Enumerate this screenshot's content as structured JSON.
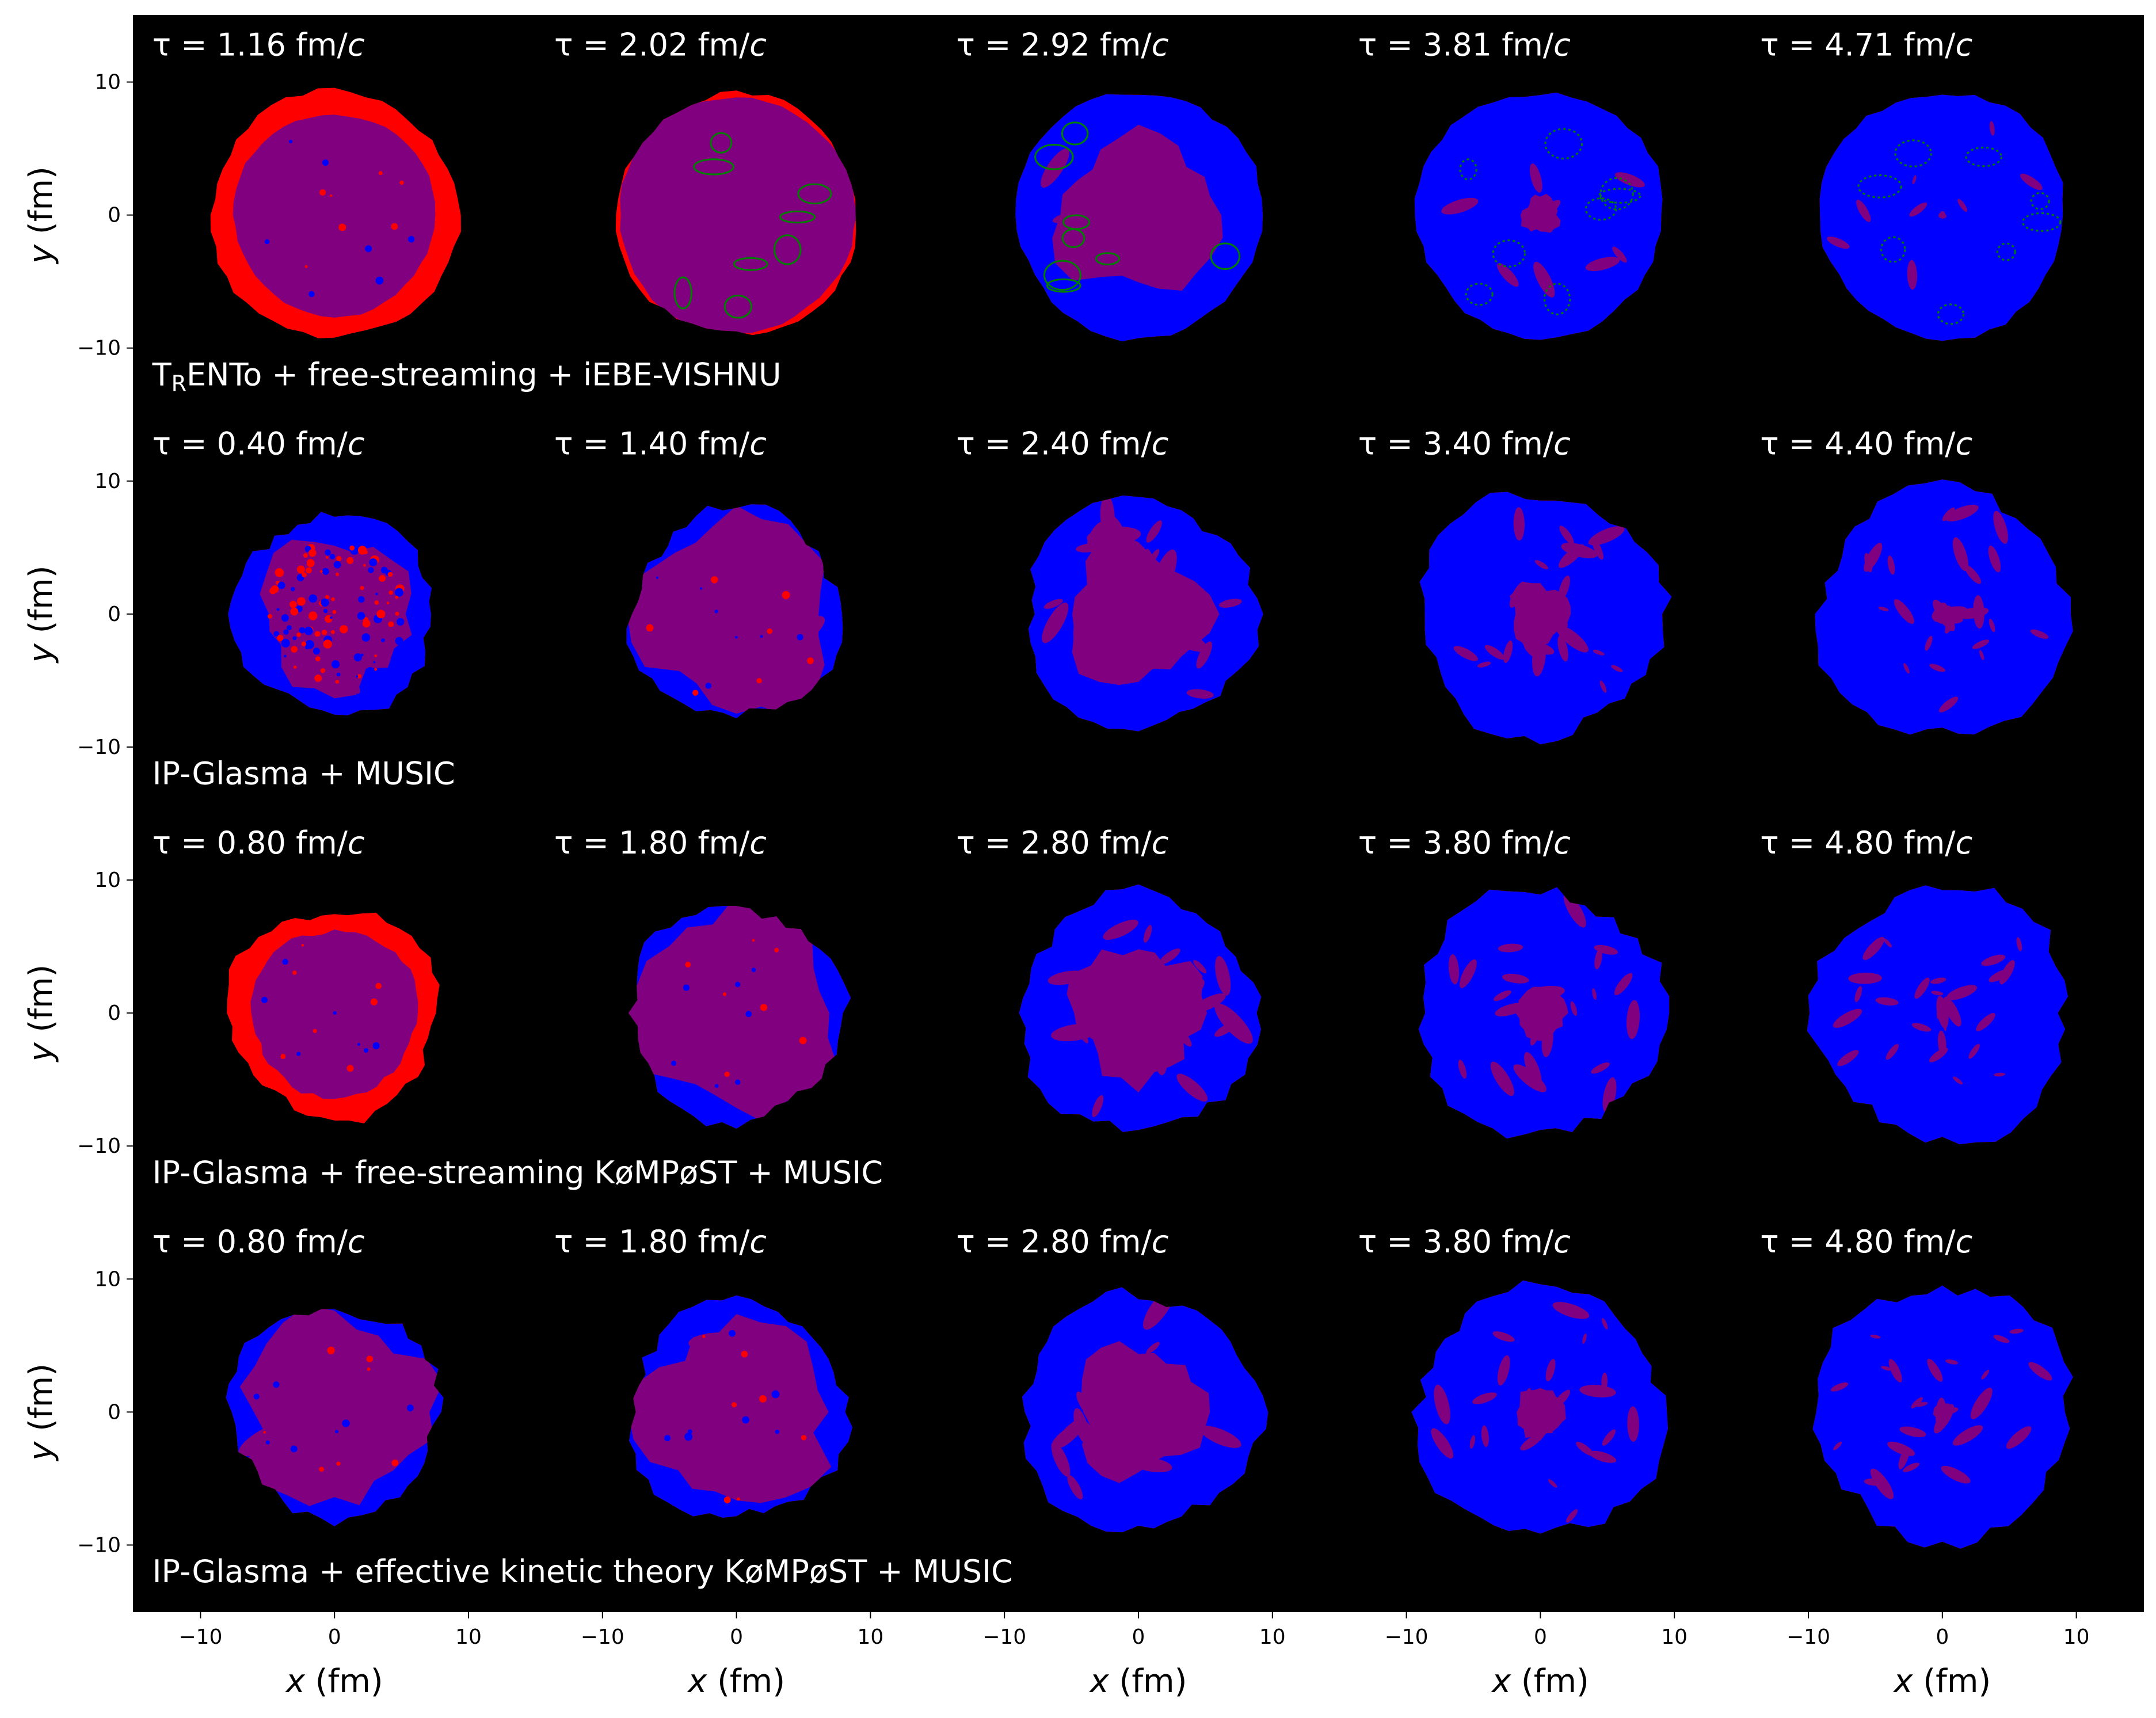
{
  "chart_data": {
    "type": "heatmap",
    "description_note": "",
    "x_axis": {
      "label_var": "x",
      "label_unit": " (fm)",
      "range": [
        -15,
        15
      ],
      "ticks": [
        -10,
        0,
        10
      ],
      "tick_labels": [
        "−10",
        "0",
        "10"
      ]
    },
    "y_axis": {
      "label_var": "y",
      "label_unit": " (fm)",
      "range": [
        -15,
        15
      ],
      "ticks": [
        10,
        0,
        -10
      ],
      "tick_labels": [
        "10",
        "0",
        "−10"
      ]
    },
    "rows": [
      {
        "model_label": "T",
        "model_label_sub": "R",
        "model_label_rest": "ENTo + free-streaming + iEBE-VISHNU",
        "times": [
          "1.16",
          "2.02",
          "2.92",
          "3.81",
          "4.71"
        ]
      },
      {
        "model_label": "IP-Glasma + MUSIC",
        "model_label_sub": "",
        "model_label_rest": "",
        "times": [
          "0.40",
          "1.40",
          "2.40",
          "3.40",
          "4.40"
        ]
      },
      {
        "model_label": "IP-Glasma + free-streaming KøMPøST + MUSIC",
        "model_label_sub": "",
        "model_label_rest": "",
        "times": [
          "0.80",
          "1.80",
          "2.80",
          "3.80",
          "4.80"
        ]
      },
      {
        "model_label": "IP-Glasma + effective kinetic theory KøMPøST + MUSIC",
        "model_label_sub": "",
        "model_label_rest": "",
        "times": [
          "0.80",
          "1.80",
          "2.80",
          "3.80",
          "4.80"
        ]
      }
    ],
    "time_prefix": "τ = ",
    "time_unit": " fm/",
    "time_unit_var": "c",
    "panels": [
      [
        {
          "r": 9.2,
          "red_frac": 0.18,
          "blue": 0.0,
          "bubbles": "few"
        },
        {
          "r": 9.0,
          "red_frac": 0.02,
          "blue": 0.0,
          "bubbles": "green"
        },
        {
          "r": 9.2,
          "red_frac": 0.03,
          "blue": 0.35,
          "bubbles": "green"
        },
        {
          "r": 9.2,
          "red_frac": 0.0,
          "blue": 0.85,
          "bubbles": "green"
        },
        {
          "r": 9.2,
          "red_frac": 0.0,
          "blue": 0.97,
          "bubbles": "green"
        }
      ],
      [
        {
          "r": 7.5,
          "red_frac": 0.3,
          "blue": 0.25,
          "bubbles": "noise"
        },
        {
          "r": 7.8,
          "red_frac": 0.04,
          "blue": 0.05,
          "bubbles": "few"
        },
        {
          "r": 8.6,
          "red_frac": 0.03,
          "blue": 0.4,
          "bubbles": "patch"
        },
        {
          "r": 9.1,
          "red_frac": 0.0,
          "blue": 0.75,
          "bubbles": "patch"
        },
        {
          "r": 9.3,
          "red_frac": 0.0,
          "blue": 0.92,
          "bubbles": "patch"
        }
      ],
      [
        {
          "r": 7.8,
          "red_frac": 0.2,
          "blue": 0.0,
          "bubbles": "few"
        },
        {
          "r": 8.0,
          "red_frac": 0.1,
          "blue": 0.05,
          "bubbles": "few"
        },
        {
          "r": 8.8,
          "red_frac": 0.02,
          "blue": 0.45,
          "bubbles": "patch"
        },
        {
          "r": 9.2,
          "red_frac": 0.0,
          "blue": 0.8,
          "bubbles": "patch"
        },
        {
          "r": 9.5,
          "red_frac": 0.0,
          "blue": 0.95,
          "bubbles": "patch"
        }
      ],
      [
        {
          "r": 7.8,
          "red_frac": 0.15,
          "blue": 0.1,
          "bubbles": "few"
        },
        {
          "r": 8.1,
          "red_frac": 0.08,
          "blue": 0.15,
          "bubbles": "few"
        },
        {
          "r": 8.8,
          "red_frac": 0.02,
          "blue": 0.45,
          "bubbles": "patch"
        },
        {
          "r": 9.2,
          "red_frac": 0.0,
          "blue": 0.8,
          "bubbles": "patch"
        },
        {
          "r": 9.5,
          "red_frac": 0.0,
          "blue": 0.93,
          "bubbles": "patch"
        }
      ]
    ],
    "colors": {
      "background": "#000000",
      "phase_red": "#ff0000",
      "phase_purple": "#800080",
      "phase_blue": "#0000ff",
      "phase_green": "#008000",
      "text": "#ffffff",
      "axis_text": "#000000"
    }
  }
}
